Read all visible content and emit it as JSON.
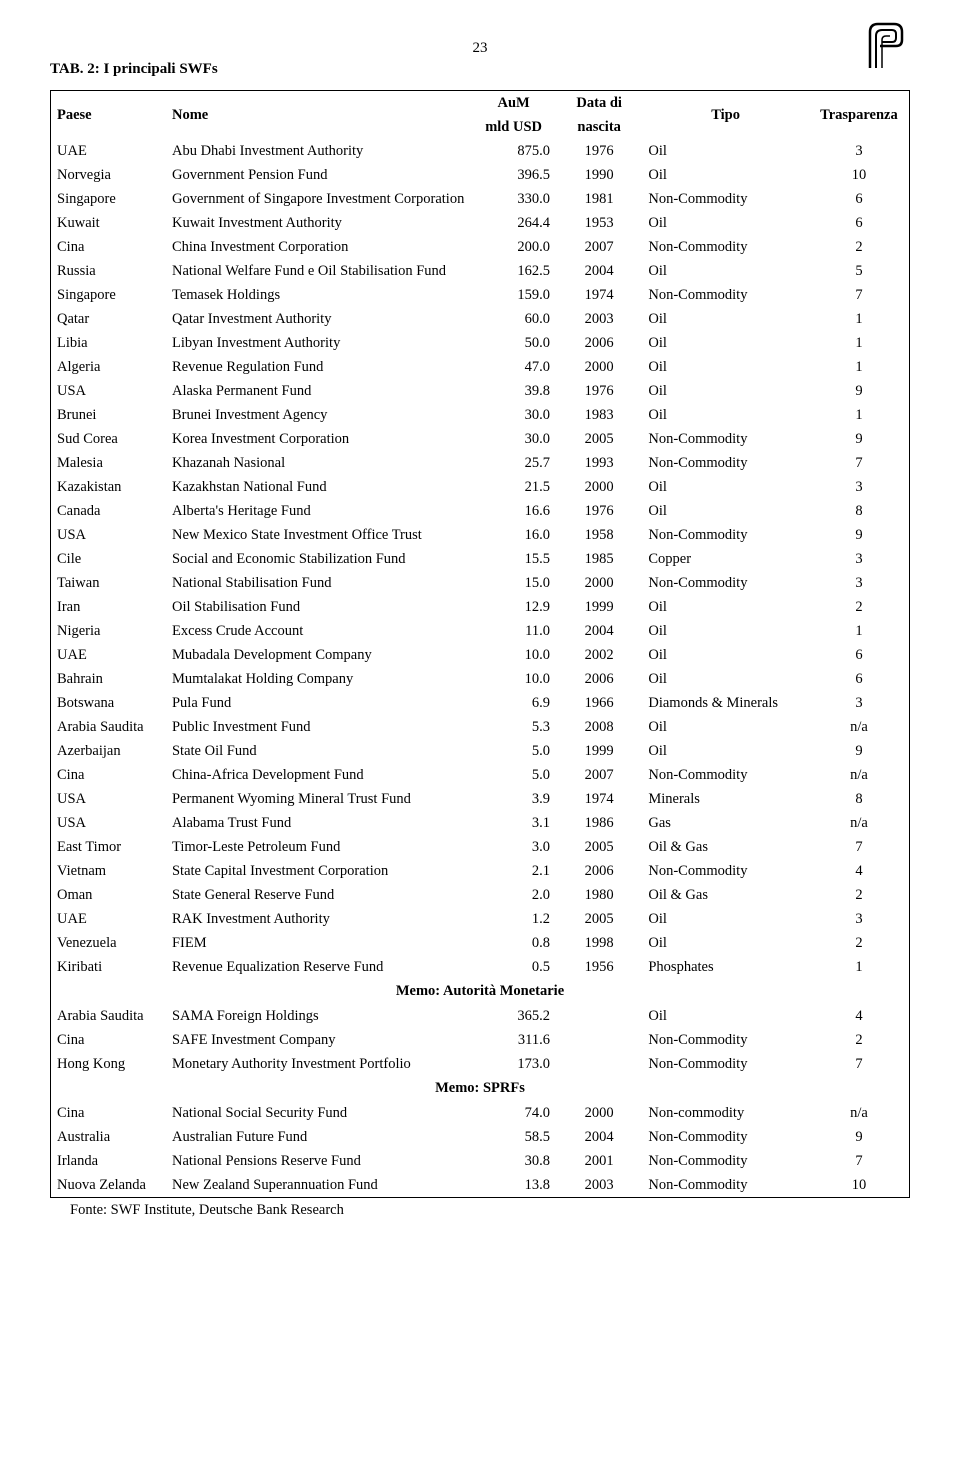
{
  "page_number": "23",
  "title": "TAB. 2: I principali SWFs",
  "columns": {
    "paese": "Paese",
    "nome": "Nome",
    "aum_line1": "AuM",
    "aum_line2": "mld USD",
    "data_line1": "Data di",
    "data_line2": "nascita",
    "tipo": "Tipo",
    "trasparenza": "Trasparenza"
  },
  "rows": [
    {
      "paese": "UAE",
      "nome": "Abu Dhabi Investment Authority",
      "aum": "875.0",
      "data": "1976",
      "tipo": "Oil",
      "trasp": "3"
    },
    {
      "paese": "Norvegia",
      "nome": "Government Pension Fund",
      "aum": "396.5",
      "data": "1990",
      "tipo": "Oil",
      "trasp": "10"
    },
    {
      "paese": "Singapore",
      "nome": "Government of Singapore Investment Corporation",
      "aum": "330.0",
      "data": "1981",
      "tipo": "Non-Commodity",
      "trasp": "6"
    },
    {
      "paese": "Kuwait",
      "nome": "Kuwait Investment Authority",
      "aum": "264.4",
      "data": "1953",
      "tipo": "Oil",
      "trasp": "6"
    },
    {
      "paese": "Cina",
      "nome": "China Investment Corporation",
      "aum": "200.0",
      "data": "2007",
      "tipo": "Non-Commodity",
      "trasp": "2"
    },
    {
      "paese": "Russia",
      "nome": "National Welfare Fund e Oil Stabilisation Fund",
      "aum": "162.5",
      "data": "2004",
      "tipo": "Oil",
      "trasp": "5"
    },
    {
      "paese": "Singapore",
      "nome": "Temasek Holdings",
      "aum": "159.0",
      "data": "1974",
      "tipo": "Non-Commodity",
      "trasp": "7"
    },
    {
      "paese": "Qatar",
      "nome": "Qatar Investment Authority",
      "aum": "60.0",
      "data": "2003",
      "tipo": "Oil",
      "trasp": "1"
    },
    {
      "paese": "Libia",
      "nome": "Libyan Investment Authority",
      "aum": "50.0",
      "data": "2006",
      "tipo": "Oil",
      "trasp": "1"
    },
    {
      "paese": "Algeria",
      "nome": "Revenue Regulation Fund",
      "aum": "47.0",
      "data": "2000",
      "tipo": "Oil",
      "trasp": "1"
    },
    {
      "paese": "USA",
      "nome": "Alaska Permanent Fund",
      "aum": "39.8",
      "data": "1976",
      "tipo": "Oil",
      "trasp": "9"
    },
    {
      "paese": "Brunei",
      "nome": "Brunei Investment Agency",
      "aum": "30.0",
      "data": "1983",
      "tipo": "Oil",
      "trasp": "1"
    },
    {
      "paese": "Sud Corea",
      "nome": "Korea Investment Corporation",
      "aum": "30.0",
      "data": "2005",
      "tipo": "Non-Commodity",
      "trasp": "9"
    },
    {
      "paese": "Malesia",
      "nome": "Khazanah Nasional",
      "aum": "25.7",
      "data": "1993",
      "tipo": "Non-Commodity",
      "trasp": "7"
    },
    {
      "paese": "Kazakistan",
      "nome": "Kazakhstan National Fund",
      "aum": "21.5",
      "data": "2000",
      "tipo": "Oil",
      "trasp": "3"
    },
    {
      "paese": "Canada",
      "nome": "Alberta's Heritage Fund",
      "aum": "16.6",
      "data": "1976",
      "tipo": "Oil",
      "trasp": "8"
    },
    {
      "paese": "USA",
      "nome": "New Mexico State Investment Office Trust",
      "aum": "16.0",
      "data": "1958",
      "tipo": "Non-Commodity",
      "trasp": "9"
    },
    {
      "paese": "Cile",
      "nome": "Social and Economic Stabilization Fund",
      "aum": "15.5",
      "data": "1985",
      "tipo": "Copper",
      "trasp": "3"
    },
    {
      "paese": "Taiwan",
      "nome": "National Stabilisation Fund",
      "aum": "15.0",
      "data": "2000",
      "tipo": "Non-Commodity",
      "trasp": "3"
    },
    {
      "paese": "Iran",
      "nome": "Oil Stabilisation Fund",
      "aum": "12.9",
      "data": "1999",
      "tipo": "Oil",
      "trasp": "2"
    },
    {
      "paese": "Nigeria",
      "nome": "Excess Crude Account",
      "aum": "11.0",
      "data": "2004",
      "tipo": "Oil",
      "trasp": "1"
    },
    {
      "paese": "UAE",
      "nome": "Mubadala Development Company",
      "aum": "10.0",
      "data": "2002",
      "tipo": "Oil",
      "trasp": "6"
    },
    {
      "paese": "Bahrain",
      "nome": "Mumtalakat Holding Company",
      "aum": "10.0",
      "data": "2006",
      "tipo": "Oil",
      "trasp": "6"
    },
    {
      "paese": "Botswana",
      "nome": "Pula Fund",
      "aum": "6.9",
      "data": "1966",
      "tipo": "Diamonds & Minerals",
      "trasp": "3"
    },
    {
      "paese": "Arabia Saudita",
      "nome": "Public Investment Fund",
      "aum": "5.3",
      "data": "2008",
      "tipo": "Oil",
      "trasp": "n/a"
    },
    {
      "paese": "Azerbaijan",
      "nome": "State Oil Fund",
      "aum": "5.0",
      "data": "1999",
      "tipo": "Oil",
      "trasp": "9"
    },
    {
      "paese": "Cina",
      "nome": "China-Africa Development Fund",
      "aum": "5.0",
      "data": "2007",
      "tipo": "Non-Commodity",
      "trasp": "n/a"
    },
    {
      "paese": "USA",
      "nome": "Permanent Wyoming Mineral Trust Fund",
      "aum": "3.9",
      "data": "1974",
      "tipo": "Minerals",
      "trasp": "8"
    },
    {
      "paese": "USA",
      "nome": "Alabama Trust Fund",
      "aum": "3.1",
      "data": "1986",
      "tipo": "Gas",
      "trasp": "n/a"
    },
    {
      "paese": "East Timor",
      "nome": "Timor-Leste Petroleum Fund",
      "aum": "3.0",
      "data": "2005",
      "tipo": "Oil & Gas",
      "trasp": "7"
    },
    {
      "paese": "Vietnam",
      "nome": "State Capital Investment Corporation",
      "aum": "2.1",
      "data": "2006",
      "tipo": "Non-Commodity",
      "trasp": "4"
    },
    {
      "paese": "Oman",
      "nome": "State General Reserve Fund",
      "aum": "2.0",
      "data": "1980",
      "tipo": "Oil & Gas",
      "trasp": "2"
    },
    {
      "paese": "UAE",
      "nome": "RAK Investment Authority",
      "aum": "1.2",
      "data": "2005",
      "tipo": "Oil",
      "trasp": "3"
    },
    {
      "paese": "Venezuela",
      "nome": "FIEM",
      "aum": "0.8",
      "data": "1998",
      "tipo": "Oil",
      "trasp": "2"
    },
    {
      "paese": "Kiribati",
      "nome": "Revenue Equalization Reserve Fund",
      "aum": "0.5",
      "data": "1956",
      "tipo": "Phosphates",
      "trasp": "1"
    }
  ],
  "section1": "Memo: Autorità Monetarie",
  "rows_section1": [
    {
      "paese": "Arabia Saudita",
      "nome": "SAMA Foreign Holdings",
      "aum": "365.2",
      "data": "",
      "tipo": "Oil",
      "trasp": "4"
    },
    {
      "paese": "Cina",
      "nome": "SAFE Investment Company",
      "aum": "311.6",
      "data": "",
      "tipo": "Non-Commodity",
      "trasp": "2"
    },
    {
      "paese": "Hong Kong",
      "nome": "Monetary Authority Investment Portfolio",
      "aum": "173.0",
      "data": "",
      "tipo": "Non-Commodity",
      "trasp": "7"
    }
  ],
  "section2": "Memo: SPRFs",
  "rows_section2": [
    {
      "paese": "Cina",
      "nome": "National Social Security Fund",
      "aum": "74.0",
      "data": "2000",
      "tipo": "Non-commodity",
      "trasp": "n/a"
    },
    {
      "paese": "Australia",
      "nome": "Australian Future Fund",
      "aum": "58.5",
      "data": "2004",
      "tipo": "Non-Commodity",
      "trasp": "9"
    },
    {
      "paese": "Irlanda",
      "nome": "National Pensions Reserve Fund",
      "aum": "30.8",
      "data": "2001",
      "tipo": "Non-Commodity",
      "trasp": "7"
    },
    {
      "paese": "Nuova Zelanda",
      "nome": "New Zealand Superannuation Fund",
      "aum": "13.8",
      "data": "2003",
      "tipo": "Non-Commodity",
      "trasp": "10"
    }
  ],
  "footer": "Fonte: SWF Institute, Deutsche Bank Research"
}
